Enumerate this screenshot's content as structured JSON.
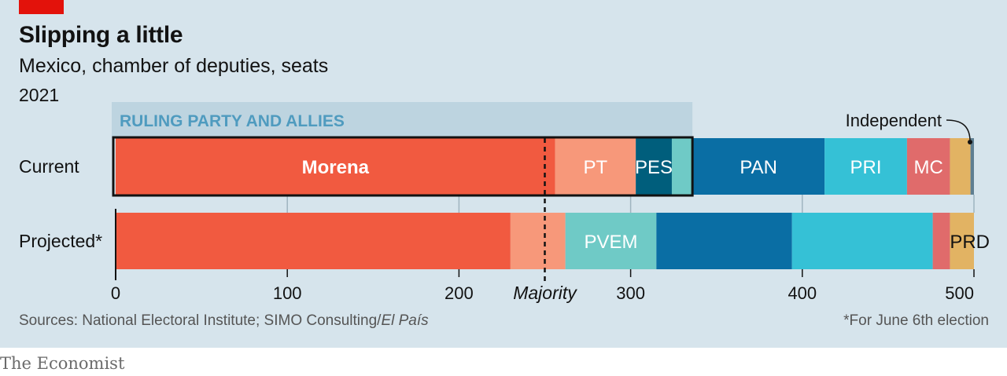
{
  "header": {
    "title": "Slipping a little",
    "subtitle": "Mexico, chamber of deputies, seats",
    "year": "2021"
  },
  "footer": {
    "sources_prefix": "Sources: National Electoral Institute; SIMO Consulting/",
    "sources_italic": "El País",
    "footnote": "*For June 6th election",
    "brand": "The Economist"
  },
  "chart_data": {
    "type": "bar",
    "orientation": "horizontal-stacked",
    "xlim": [
      0,
      500
    ],
    "xticks": [
      0,
      100,
      200,
      300,
      400,
      500
    ],
    "grid": true,
    "categories": [
      "Current",
      "Projected*"
    ],
    "series": [
      {
        "name": "Morena",
        "color": "#f15a40",
        "values": [
          256,
          230
        ]
      },
      {
        "name": "PT",
        "color": "#f7987a",
        "values": [
          47,
          32
        ]
      },
      {
        "name": "PES",
        "color": "#005e7c",
        "values": [
          21,
          0
        ]
      },
      {
        "name": "PVEM",
        "color": "#6fcac6",
        "values": [
          12,
          53
        ]
      },
      {
        "name": "PAN",
        "color": "#0a6ea4",
        "values": [
          77,
          79
        ]
      },
      {
        "name": "PRI",
        "color": "#35c1d6",
        "values": [
          48,
          82
        ]
      },
      {
        "name": "MC",
        "color": "#e06b6b",
        "values": [
          25,
          10
        ]
      },
      {
        "name": "PRD",
        "color": "#e2b363",
        "values": [
          12,
          14
        ]
      },
      {
        "name": "Independent",
        "color": "#5f7f92",
        "values": [
          2,
          0
        ]
      }
    ],
    "ruling_alliance_label": "RULING PARTY AND ALLIES",
    "ruling_alliance_total": 336,
    "majority": {
      "label": "Majority",
      "value": 250
    },
    "annotations": {
      "independent": "Independent"
    }
  }
}
